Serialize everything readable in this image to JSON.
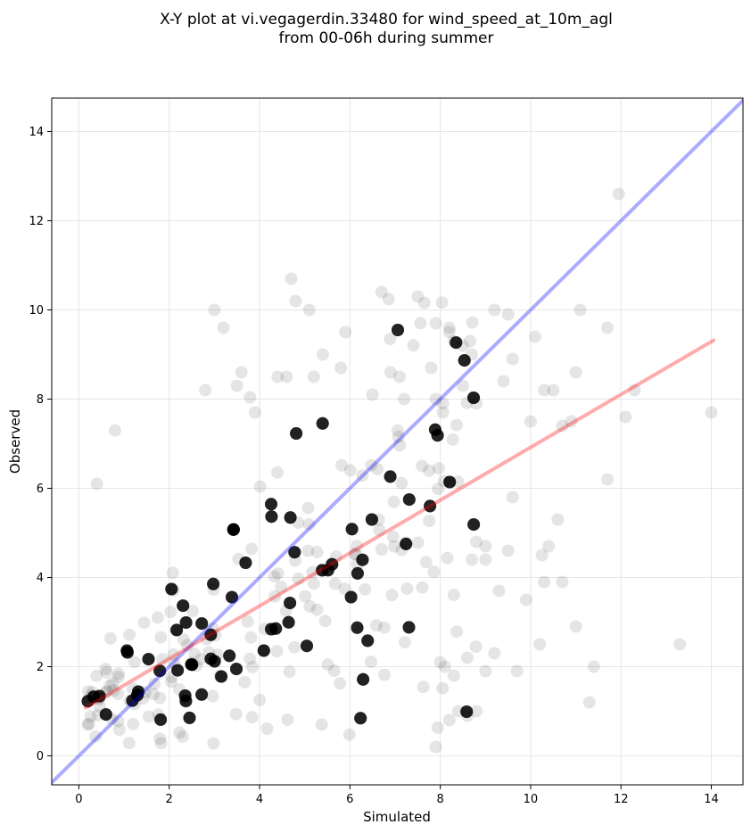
{
  "chart_data": {
    "type": "scatter",
    "title_line1": "X-Y plot at vi.vegagerdin.33480 for wind_speed_at_10m_agl",
    "title_line2": "from 00-06h during summer",
    "xlabel": "Simulated",
    "ylabel": "Observed",
    "xlim": [
      -0.6,
      14.7
    ],
    "ylim": [
      -0.65,
      14.75
    ],
    "xticks": [
      0,
      2,
      4,
      6,
      8,
      10,
      12,
      14
    ],
    "yticks": [
      0,
      2,
      4,
      6,
      8,
      10,
      12,
      14
    ],
    "grid": true,
    "point_color": "#000000",
    "point_alpha": 0.1,
    "identity_line": {
      "color": "#0000ff",
      "alpha": 0.33
    },
    "regression_line": {
      "x": [
        0.15,
        14.05
      ],
      "y": [
        1.08,
        9.32
      ],
      "color": "#ff0000",
      "alpha": 0.33
    },
    "points": [
      [
        0.4,
        6.1
      ],
      [
        0.8,
        7.3
      ],
      [
        3.0,
        10.0
      ],
      [
        3.2,
        9.6
      ],
      [
        4.7,
        10.7
      ],
      [
        4.8,
        10.2
      ],
      [
        5.1,
        10.0
      ],
      [
        6.7,
        10.4
      ],
      [
        7.5,
        10.3
      ],
      [
        11.95,
        12.6
      ],
      [
        7.9,
        9.7
      ],
      [
        8.2,
        9.6
      ],
      [
        8.5,
        9.2
      ],
      [
        9.5,
        9.9
      ],
      [
        10.1,
        9.4
      ],
      [
        11.1,
        10.0
      ],
      [
        11.7,
        9.6
      ],
      [
        12.3,
        8.2
      ],
      [
        12.1,
        7.6
      ],
      [
        14.0,
        7.7
      ],
      [
        11.7,
        6.2
      ],
      [
        10.7,
        7.4
      ],
      [
        10.9,
        7.5
      ],
      [
        11.0,
        8.6
      ],
      [
        10.3,
        8.2
      ],
      [
        10.5,
        8.2
      ],
      [
        10.0,
        7.5
      ],
      [
        9.6,
        8.9
      ],
      [
        9.4,
        8.4
      ],
      [
        8.8,
        7.9
      ],
      [
        13.3,
        2.5
      ],
      [
        11.4,
        2.0
      ],
      [
        11.3,
        1.2
      ],
      [
        11.0,
        2.9
      ],
      [
        10.2,
        2.5
      ],
      [
        9.7,
        1.9
      ],
      [
        9.2,
        2.3
      ],
      [
        9.0,
        1.9
      ],
      [
        8.8,
        1.0
      ],
      [
        7.9,
        0.2
      ],
      [
        10.4,
        4.7
      ],
      [
        10.6,
        5.3
      ],
      [
        10.7,
        3.9
      ],
      [
        10.3,
        3.9
      ],
      [
        10.25,
        4.5
      ],
      [
        9.9,
        3.5
      ],
      [
        9.5,
        4.6
      ],
      [
        9.6,
        5.8
      ],
      [
        9.3,
        3.7
      ],
      [
        9.0,
        4.4
      ],
      [
        8.7,
        4.4
      ],
      [
        8.8,
        4.8
      ],
      [
        9.0,
        4.7
      ],
      [
        8.6,
        2.2
      ],
      [
        8.3,
        1.8
      ],
      [
        8.1,
        2.0
      ],
      [
        8.2,
        0.8
      ],
      [
        8.4,
        1.0
      ],
      [
        8.6,
        0.9
      ],
      [
        8.0,
        2.1
      ],
      [
        2.8,
        8.2
      ],
      [
        3.5,
        8.3
      ],
      [
        3.6,
        8.6
      ],
      [
        3.9,
        7.7
      ],
      [
        4.4,
        8.5
      ],
      [
        4.6,
        8.5
      ],
      [
        5.2,
        8.5
      ],
      [
        5.4,
        9.0
      ],
      [
        5.8,
        8.7
      ],
      [
        5.9,
        9.5
      ],
      [
        7.1,
        8.5
      ],
      [
        7.2,
        8.0
      ],
      [
        7.8,
        8.7
      ],
      [
        7.9,
        8.0
      ],
      [
        8.3,
        9.3
      ],
      [
        8.7,
        9.0
      ],
      [
        8.5,
        8.3
      ],
      [
        9.2,
        10.0
      ],
      [
        6.9,
        8.6
      ],
      [
        6.5,
        8.1
      ]
    ]
  }
}
